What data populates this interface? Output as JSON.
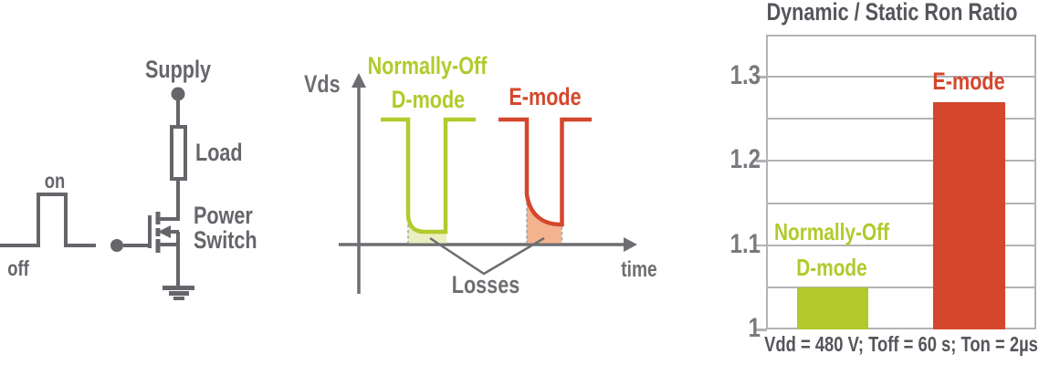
{
  "colors": {
    "green": "#b2ca2b",
    "green_loss_fill": "#e9efbf",
    "red": "#d4472c",
    "red_loss_fill": "#f3b38f",
    "text_dark_gray": "#55565b",
    "line_gray": "#64666a",
    "frame_light_gray": "#b2b3b5"
  },
  "circuit": {
    "supply_label": "Supply",
    "load_label": "Load",
    "power_switch_line1": "Power",
    "power_switch_line2": "Switch",
    "gate_on_label": "on",
    "gate_off_label": "off"
  },
  "waveform_plot": {
    "y_axis_label": "Vds",
    "x_axis_label": "time",
    "dmode_label_line1": "Normally-Off",
    "dmode_label_line2": "D-mode",
    "emode_label": "E-mode",
    "losses_label": "Losses"
  },
  "chart_data": {
    "type": "bar",
    "title": "Dynamic / Static Ron Ratio",
    "categories": [
      "Normally-Off D-mode",
      "E-mode"
    ],
    "values": [
      1.05,
      1.27
    ],
    "bar_colors": [
      "#b2ca2b",
      "#d4472c"
    ],
    "bar_label_line1": [
      "Normally-Off",
      "E-mode"
    ],
    "bar_label_line2": [
      "D-mode",
      ""
    ],
    "ylim": [
      1.0,
      1.35
    ],
    "yticks": [
      1,
      1.1,
      1.2,
      1.3
    ],
    "ytick_labels": [
      "1",
      "1.1",
      "1.2",
      "1.3"
    ],
    "gridline_step": 0.05,
    "grid": true,
    "legend_position": "none",
    "xlabel": "",
    "ylabel": "Dynamic / Static Ron Ratio",
    "caption": "Vdd = 480 V; Toff = 60 s; Ton = 2µs"
  }
}
